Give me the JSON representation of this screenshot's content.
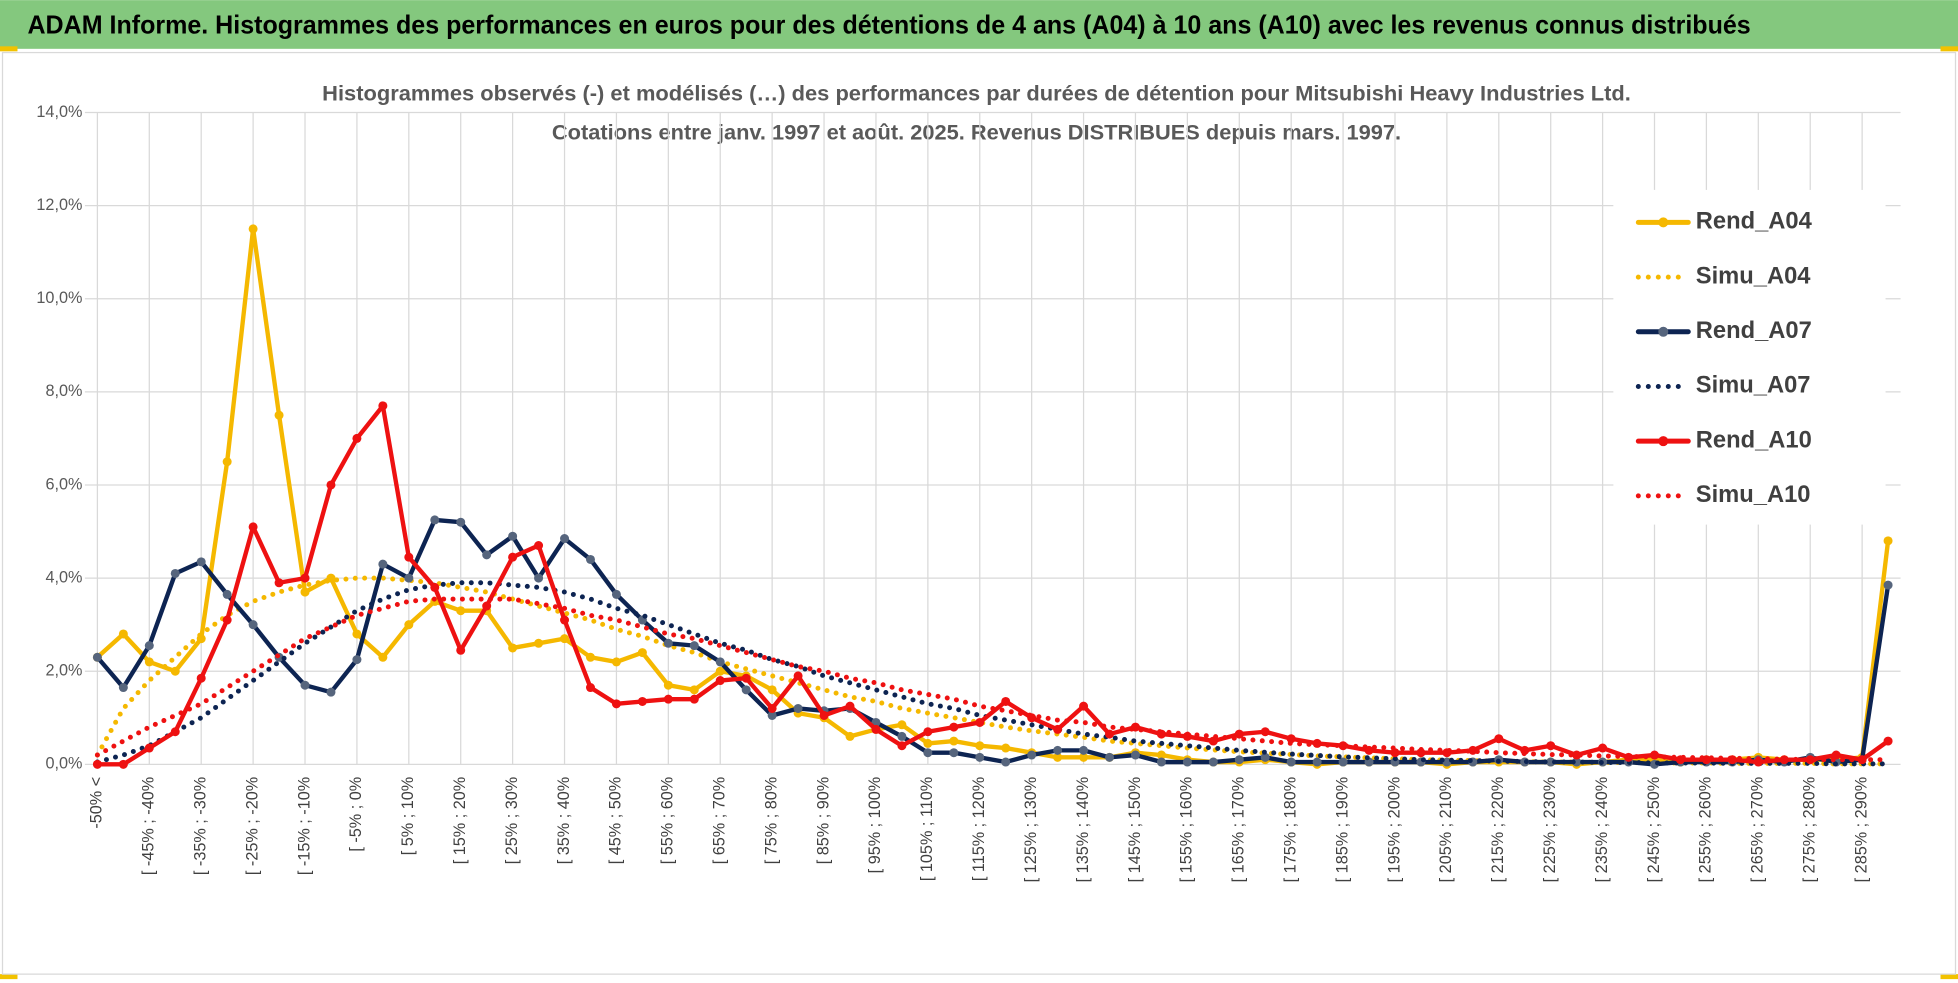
{
  "header": {
    "title": "ADAM Informe. Histogrammes des performances en euros pour des détentions de 4 ans (A04) à 10 ans (A10) avec les revenus connus distribués"
  },
  "chart_data": {
    "type": "line",
    "title": "Histogrammes observés (-) et modélisés (…) des performances par durées de détention pour Mitsubishi Heavy Industries Ltd.",
    "subtitle": "Cotations entre janv. 1997 et août. 2025. Revenus DISTRIBUES depuis mars. 1997.",
    "categories": [
      "-50% <",
      null,
      "[ -45% ; -40%",
      null,
      "[ -35% ; -30%",
      null,
      "[ -25% ; -20%",
      null,
      "[ -15% ; -10%",
      null,
      "[ -5% ; 0%",
      null,
      "[ 5% ; 10%",
      null,
      "[ 15% ; 20%",
      null,
      "[ 25% ; 30%",
      null,
      "[ 35% ; 40%",
      null,
      "[ 45% ; 50%",
      null,
      "[ 55% ; 60%",
      null,
      "[ 65% ; 70%",
      null,
      "[ 75% ; 80%",
      null,
      "[ 85% ; 90%",
      null,
      "[ 95% ; 100%",
      null,
      "[ 105% ; 110%",
      null,
      "[ 115% ; 120%",
      null,
      "[ 125% ; 130%",
      null,
      "[ 135% ; 140%",
      null,
      "[ 145% ; 150%",
      null,
      "[ 155% ; 160%",
      null,
      "[ 165% ; 170%",
      null,
      "[ 175% ; 180%",
      null,
      "[ 185% ; 190%",
      null,
      "[ 195% ; 200%",
      null,
      "[ 205% ; 210%",
      null,
      "[ 215% ; 220%",
      null,
      "[ 225% ; 230%",
      null,
      "[ 235% ; 240%",
      null,
      "[ 245% ; 250%",
      null,
      "[ 255% ; 260%",
      null,
      "[ 265% ; 270%",
      null,
      "[ 275% ; 280%",
      null,
      "[ 285% ; 290%",
      null
    ],
    "series": [
      {
        "name": "Rend_A04",
        "color": "#f5b800",
        "marker_color": "#f5b800",
        "style": "solid",
        "values": [
          2.3,
          2.8,
          2.2,
          2.0,
          2.7,
          6.5,
          11.5,
          7.5,
          3.7,
          4.0,
          2.8,
          2.3,
          3.0,
          3.5,
          3.3,
          3.3,
          2.5,
          2.6,
          2.7,
          2.3,
          2.2,
          2.4,
          1.7,
          1.6,
          2.0,
          1.9,
          1.6,
          1.1,
          1.0,
          0.6,
          0.75,
          0.85,
          0.45,
          0.5,
          0.4,
          0.35,
          0.25,
          0.15,
          0.15,
          0.15,
          0.25,
          0.2,
          0.1,
          0.05,
          0.05,
          0.1,
          0.05,
          0,
          0.05,
          0.05,
          0.05,
          0.05,
          0,
          0.05,
          0.05,
          0.05,
          0.05,
          0,
          0.05,
          0.1,
          0.1,
          0.05,
          0.1,
          0.1,
          0.15,
          0.1,
          0.1,
          0.1,
          0.15,
          4.8
        ]
      },
      {
        "name": "Simu_A04",
        "color": "#f5b800",
        "style": "dotted",
        "values": [
          0.2,
          1.2,
          1.8,
          2.3,
          2.8,
          3.2,
          3.5,
          3.7,
          3.85,
          3.95,
          4.0,
          4.0,
          3.95,
          3.9,
          3.8,
          3.7,
          3.55,
          3.4,
          3.25,
          3.1,
          2.9,
          2.75,
          2.55,
          2.4,
          2.2,
          2.05,
          1.9,
          1.75,
          1.6,
          1.45,
          1.35,
          1.2,
          1.1,
          1.0,
          0.9,
          0.8,
          0.72,
          0.65,
          0.58,
          0.5,
          0.45,
          0.4,
          0.35,
          0.31,
          0.27,
          0.24,
          0.21,
          0.18,
          0.16,
          0.14,
          0.12,
          0.1,
          0.09,
          0.08,
          0.07,
          0.06,
          0.05,
          0.05,
          0.04,
          0.04,
          0.03,
          0.03,
          0.03,
          0.02,
          0.02,
          0.02,
          0.02,
          0.01,
          0.01,
          0.01
        ]
      },
      {
        "name": "Rend_A07",
        "color": "#0d2452",
        "marker_color": "#56657d",
        "style": "solid",
        "values": [
          2.3,
          1.65,
          2.55,
          4.1,
          4.35,
          3.65,
          3.0,
          2.3,
          1.7,
          1.55,
          2.25,
          4.3,
          4.0,
          5.25,
          5.2,
          4.5,
          4.9,
          4.0,
          4.85,
          4.4,
          3.65,
          3.1,
          2.6,
          2.55,
          2.2,
          1.6,
          1.05,
          1.2,
          1.15,
          1.2,
          0.9,
          0.6,
          0.25,
          0.25,
          0.15,
          0.05,
          0.2,
          0.3,
          0.3,
          0.15,
          0.2,
          0.05,
          0.05,
          0.05,
          0.1,
          0.15,
          0.05,
          0.05,
          0.05,
          0.05,
          0.05,
          0.05,
          0.05,
          0.05,
          0.1,
          0.05,
          0.05,
          0.05,
          0.05,
          0.05,
          0,
          0.05,
          0.05,
          0.05,
          0.1,
          0.05,
          0.15,
          0.05,
          0.1,
          3.85
        ]
      },
      {
        "name": "Simu_A07",
        "color": "#0d2452",
        "style": "dotted",
        "values": [
          0.05,
          0.2,
          0.4,
          0.7,
          1.0,
          1.4,
          1.8,
          2.2,
          2.6,
          2.95,
          3.3,
          3.55,
          3.75,
          3.85,
          3.9,
          3.9,
          3.85,
          3.8,
          3.7,
          3.55,
          3.35,
          3.2,
          3.0,
          2.8,
          2.6,
          2.45,
          2.25,
          2.1,
          1.9,
          1.75,
          1.6,
          1.45,
          1.3,
          1.2,
          1.05,
          0.95,
          0.85,
          0.75,
          0.65,
          0.58,
          0.5,
          0.45,
          0.4,
          0.35,
          0.3,
          0.26,
          0.22,
          0.19,
          0.16,
          0.14,
          0.12,
          0.1,
          0.09,
          0.08,
          0.07,
          0.06,
          0.05,
          0.05,
          0.04,
          0.04,
          0.03,
          0.03,
          0.03,
          0.02,
          0.02,
          0.02,
          0.02,
          0.01,
          0.01,
          0.01
        ]
      },
      {
        "name": "Rend_A10",
        "color": "#ee1111",
        "marker_color": "#ee1111",
        "style": "solid",
        "values": [
          0,
          0,
          0.35,
          0.7,
          1.85,
          3.1,
          5.1,
          3.9,
          4.0,
          6.0,
          7.0,
          7.7,
          4.45,
          3.8,
          2.45,
          3.4,
          4.45,
          4.7,
          3.1,
          1.65,
          1.3,
          1.35,
          1.4,
          1.4,
          1.8,
          1.85,
          1.2,
          1.9,
          1.05,
          1.25,
          0.75,
          0.4,
          0.7,
          0.8,
          0.9,
          1.35,
          1.0,
          0.75,
          1.25,
          0.65,
          0.8,
          0.65,
          0.6,
          0.5,
          0.65,
          0.7,
          0.55,
          0.45,
          0.4,
          0.3,
          0.25,
          0.25,
          0.25,
          0.3,
          0.55,
          0.3,
          0.4,
          0.2,
          0.35,
          0.15,
          0.2,
          0.1,
          0.1,
          0.1,
          0.05,
          0.1,
          0.1,
          0.2,
          0.1,
          0.5
        ]
      },
      {
        "name": "Simu_A10",
        "color": "#ee1111",
        "style": "dotted",
        "values": [
          0.2,
          0.5,
          0.8,
          1.05,
          1.3,
          1.65,
          2.0,
          2.35,
          2.7,
          2.95,
          3.2,
          3.35,
          3.5,
          3.55,
          3.55,
          3.55,
          3.55,
          3.45,
          3.35,
          3.2,
          3.1,
          2.95,
          2.8,
          2.7,
          2.55,
          2.4,
          2.25,
          2.1,
          2.0,
          1.85,
          1.75,
          1.6,
          1.5,
          1.4,
          1.25,
          1.15,
          1.05,
          0.95,
          0.9,
          0.8,
          0.75,
          0.7,
          0.65,
          0.6,
          0.55,
          0.5,
          0.45,
          0.42,
          0.4,
          0.37,
          0.35,
          0.32,
          0.3,
          0.28,
          0.25,
          0.23,
          0.21,
          0.2,
          0.18,
          0.17,
          0.16,
          0.15,
          0.14,
          0.13,
          0.12,
          0.11,
          0.1,
          0.1,
          0.1,
          0.1
        ]
      }
    ],
    "ylim": [
      0,
      14
    ],
    "yticks": [
      {
        "value": 0,
        "label": "0,0%"
      },
      {
        "value": 2,
        "label": "2,0%"
      },
      {
        "value": 4,
        "label": "4,0%"
      },
      {
        "value": 6,
        "label": "6,0%"
      },
      {
        "value": 8,
        "label": "8,0%"
      },
      {
        "value": 10,
        "label": "10,0%"
      },
      {
        "value": 12,
        "label": "12,0%"
      },
      {
        "value": 14,
        "label": "14,0%"
      }
    ],
    "grid": true,
    "legend": "upper right"
  }
}
